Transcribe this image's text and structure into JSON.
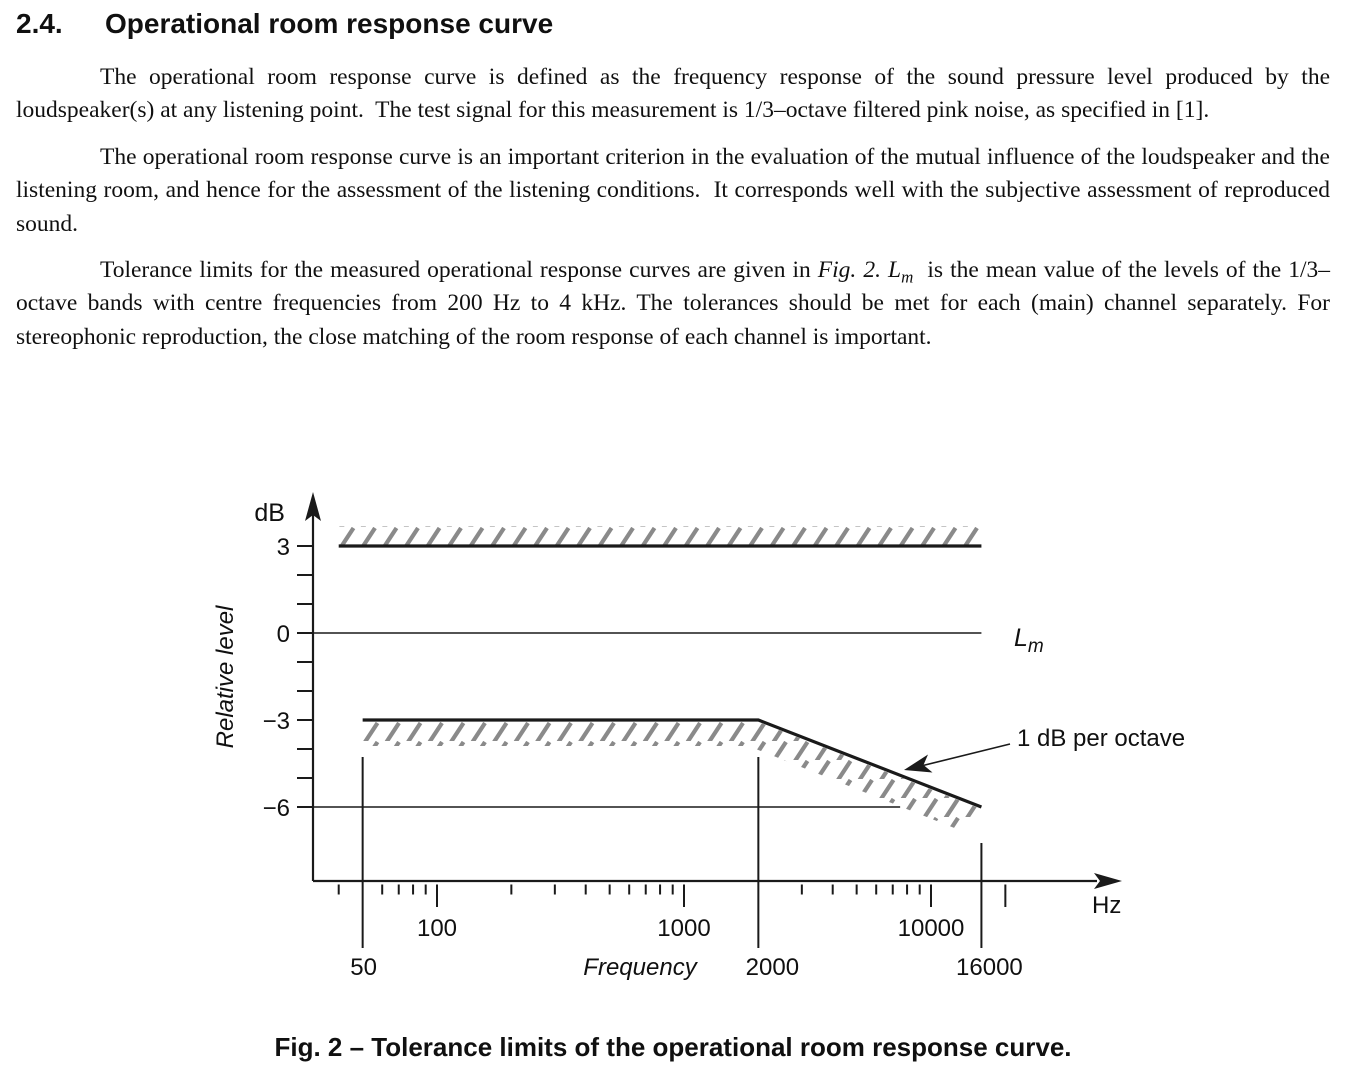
{
  "document": {
    "heading": {
      "number": "2.4.",
      "title": "Operational room response curve"
    },
    "paragraphs": {
      "p1": "The operational room response curve is defined as the frequency response of the sound pressure level produced by the loudspeaker(s) at any listening point.  The test signal for this measurement is 1/3–octave filtered pink noise, as specified in [1].",
      "p2": "The operational room response curve is an important criterion in the evaluation of the mutual influence of the loudspeaker and the listening room, and hence for the assessment of the listening conditions.  It corresponds well with the subjective assessment of reproduced sound.",
      "p3_before_fig": "Tolerance limits for the measured operational response curves are given in ",
      "p3_fig_ref": "Fig. 2.",
      "p3_lm_main": "L",
      "p3_lm_sub": "m",
      "p3_after_lm": "  is the mean value of the levels of the 1/3–octave bands with centre frequencies from 200 Hz to 4 kHz. The tolerances should be met for each (main) channel separately. For stereophonic reproduction, the close matching of the room response of each channel is important."
    },
    "figure_caption": "Fig. 2 – Tolerance limits of the operational room response curve."
  },
  "chart_data": {
    "type": "line",
    "title": "Tolerance limits of the operational room response curve",
    "x_axis": {
      "title": "Frequency",
      "unit": "Hz",
      "scale": "log",
      "major_ticks": [
        {
          "value": 100,
          "label": "100"
        },
        {
          "value": 1000,
          "label": "1000"
        },
        {
          "value": 10000,
          "label": "10000"
        }
      ],
      "medium_ticks": [
        20000
      ],
      "minor_ticks": [
        40,
        60,
        70,
        80,
        90,
        200,
        300,
        400,
        500,
        600,
        700,
        800,
        900,
        3000,
        4000,
        5000,
        6000,
        7000,
        8000,
        9000
      ],
      "reference_lines": [
        {
          "value": 50,
          "label": "50"
        },
        {
          "value": 2000,
          "label": "2000"
        },
        {
          "value": 16000,
          "label": "16000"
        }
      ]
    },
    "y_axis": {
      "title": "Relative level",
      "unit": "dB",
      "tick_values": [
        3,
        2,
        1,
        0,
        -1,
        -2,
        -3,
        -4,
        -5,
        -6
      ],
      "labeled_ticks": [
        {
          "value": 3,
          "label": "3"
        },
        {
          "value": 0,
          "label": "0"
        },
        {
          "value": -3,
          "label": "−3"
        },
        {
          "value": -6,
          "label": "−6"
        }
      ]
    },
    "series": [
      {
        "name": "upper-tolerance-limit",
        "points_hz_db": [
          [
            40,
            3
          ],
          [
            16000,
            3
          ]
        ],
        "style": "thick",
        "hatch": "above"
      },
      {
        "name": "mean-level",
        "points_hz_db": [
          [
            null,
            0
          ],
          [
            16000,
            0
          ]
        ],
        "style": "thin",
        "label_main": "L",
        "label_sub": "m"
      },
      {
        "name": "lower-tolerance-limit",
        "points_hz_db": [
          [
            50,
            -3
          ],
          [
            2000,
            -3
          ],
          [
            16000,
            -6
          ]
        ],
        "style": "thick",
        "hatch": "below"
      },
      {
        "name": "minus-six-reference",
        "points_hz_db": [
          [
            null,
            -6
          ],
          [
            7500,
            -6
          ]
        ],
        "style": "thin"
      }
    ],
    "annotation": {
      "text": "1 dB per octave"
    },
    "colors": {
      "line": "#1a1a1a",
      "hatch": "#8a8a8a",
      "text": "#101010"
    }
  }
}
